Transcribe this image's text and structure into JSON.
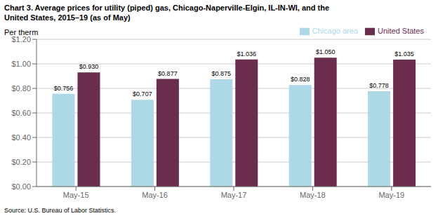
{
  "chart_data": {
    "type": "bar",
    "title": "Chart 3. Average prices for utility (piped) gas, Chicago-Naperville-Elgin, IL-IN-WI, and the\nUnited States, 2015–19 (as of May)",
    "y_label": "Per therm",
    "annotations": [
      "Source: U.S. Bureau of Labor Statistics."
    ],
    "categories": [
      "May-15",
      "May-16",
      "May-17",
      "May-18",
      "May-19"
    ],
    "series": [
      {
        "name": "Chicago area",
        "color": "#ADD8E6",
        "values": [
          0.756,
          0.707,
          0.875,
          0.828,
          0.778
        ],
        "value_labels": [
          "$0.756",
          "$0.707",
          "$0.875",
          "$0.828",
          "$0.778"
        ]
      },
      {
        "name": "United States",
        "color": "#6B2D4E",
        "values": [
          0.93,
          0.877,
          1.036,
          1.05,
          1.035
        ],
        "value_labels": [
          "$0.930",
          "$0.877",
          "$1.036",
          "$1.050",
          "$1.035"
        ]
      }
    ],
    "ylim": [
      0.0,
      1.2
    ],
    "yticks": [
      {
        "value": 0.0,
        "label": "$0.00"
      },
      {
        "value": 0.2,
        "label": "$0.20"
      },
      {
        "value": 0.4,
        "label": "$0.40"
      },
      {
        "value": 0.6,
        "label": "$0.60"
      },
      {
        "value": 0.8,
        "label": "$0.80"
      },
      {
        "value": 1.0,
        "label": "$1.00"
      },
      {
        "value": 1.2,
        "label": "$1.20"
      }
    ],
    "grid": true,
    "legend": "upper right",
    "data_labels": true
  }
}
